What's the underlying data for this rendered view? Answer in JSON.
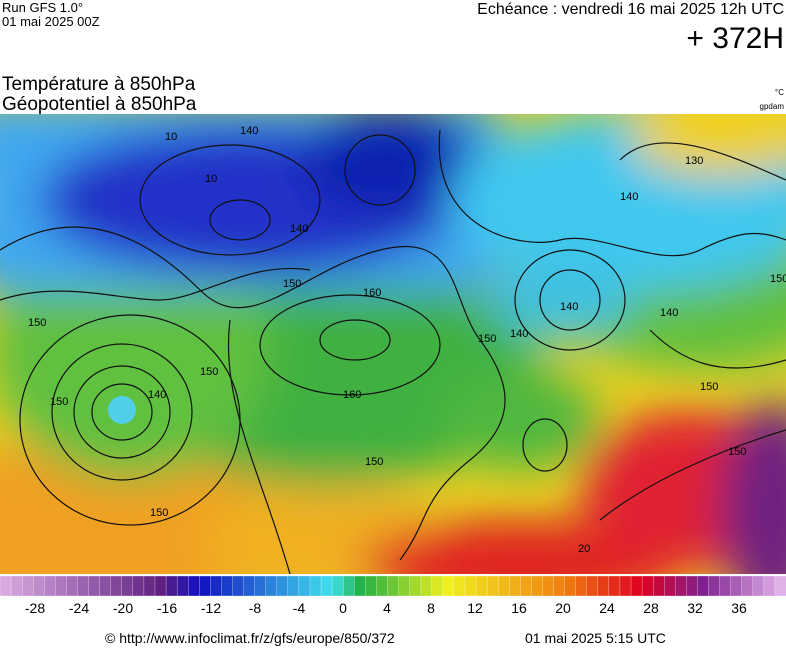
{
  "header": {
    "run": "Run GFS 1.0°",
    "run_date": "01 mai 2025 00Z",
    "valid": "Echéance : vendredi 16 mai 2025 12h UTC",
    "lead": "+ 372H",
    "title_1": "Température à 850hPa",
    "title_2": "Géopotentiel à 850hPa",
    "unit_temp": "°C",
    "unit_geo": "gpdam"
  },
  "map": {
    "contour_labels": [
      "140",
      "10",
      "10",
      "140",
      "150",
      "160",
      "160",
      "150",
      "150",
      "150",
      "140",
      "150",
      "150",
      "140",
      "150",
      "150",
      "140",
      "130",
      "150",
      "20",
      "150",
      "140",
      "140"
    ]
  },
  "colorbar": {
    "ticks": [
      -28,
      -24,
      -20,
      -16,
      -12,
      -8,
      -4,
      0,
      4,
      8,
      12,
      16,
      20,
      24,
      28,
      32,
      36
    ]
  },
  "footer": {
    "source": "© http://www.infoclimat.fr/z/gfs/europe/850/372",
    "issued": "01 mai 2025  5:15 UTC"
  }
}
